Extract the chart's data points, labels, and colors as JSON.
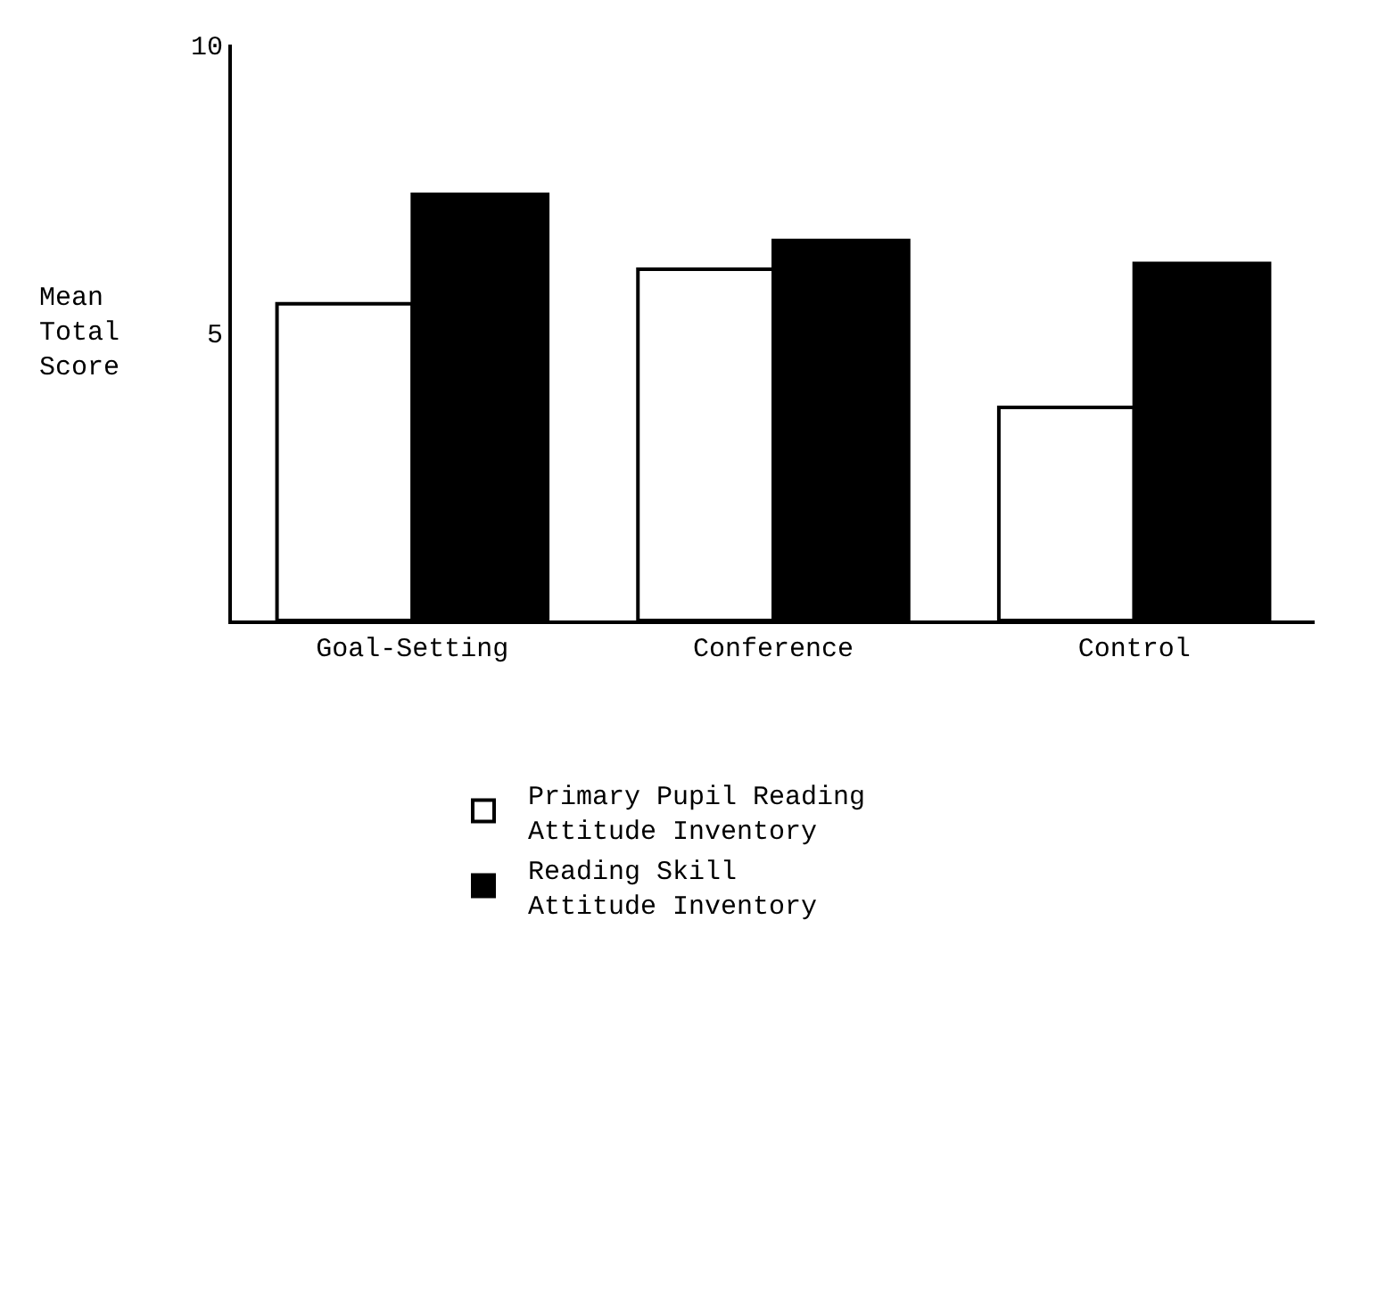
{
  "chart_data": {
    "type": "bar",
    "ylabel": "Mean Total Score",
    "categories": [
      "Goal-Setting",
      "Conference",
      "Control"
    ],
    "series": [
      {
        "name": "Primary Pupil Reading Attitude Inventory",
        "color": "#ffffff",
        "values": [
          5.5,
          6.1,
          3.7
        ]
      },
      {
        "name": "Reading Skill Attitude Inventory",
        "color": "#000000",
        "values": [
          7.4,
          6.6,
          6.2
        ]
      }
    ],
    "ylim": [
      0,
      10
    ],
    "yticks": [
      5,
      10
    ],
    "grid": false,
    "legend": "bottom"
  }
}
